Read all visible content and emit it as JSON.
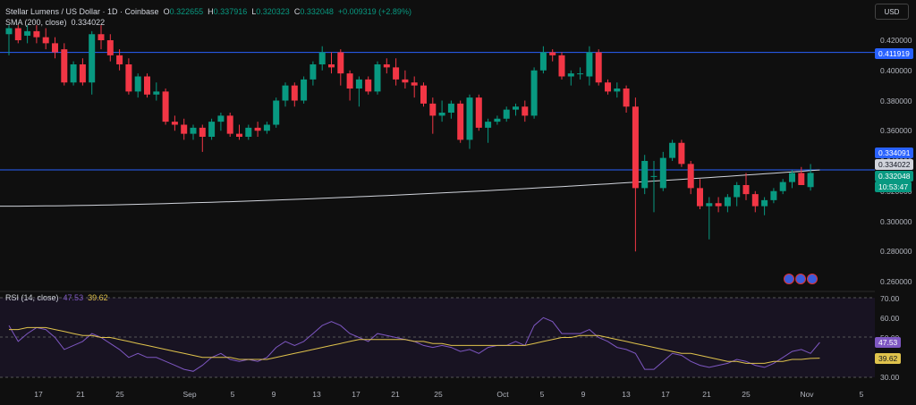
{
  "header": {
    "symbol": "Stellar Lumens / US Dollar · 1D · Coinbase",
    "o_label": "O",
    "o_value": "0.322655",
    "h_label": "H",
    "h_value": "0.337916",
    "l_label": "L",
    "l_value": "0.320323",
    "c_label": "C",
    "c_value": "0.332048",
    "change": "+0.009319 (+2.89%)",
    "sma_label": "SMA (200, close)",
    "sma_value": "0.334022"
  },
  "currency": "USD",
  "price_axis": {
    "ticks": [
      "0.420000",
      "0.400000",
      "0.380000",
      "0.360000",
      "0.340000",
      "0.320000",
      "0.300000",
      "0.280000",
      "0.260000"
    ],
    "tags": {
      "line_top": "0.411919",
      "line_bottom": "0.334091",
      "sma": "0.334022",
      "last_price": "0.332048",
      "countdown": "10:53:47"
    }
  },
  "rsi": {
    "label": "RSI (14, close)",
    "rsi_value": "47.53",
    "ma_value": "39.62",
    "ticks": [
      "70.00",
      "60.00",
      "50.00",
      "30.00"
    ],
    "tag_rsi": "47.53",
    "tag_ma": "39.62"
  },
  "x_axis": [
    "17",
    "21",
    "25",
    "Sep",
    "5",
    "9",
    "13",
    "17",
    "21",
    "25",
    "Oct",
    "5",
    "9",
    "13",
    "17",
    "21",
    "25",
    "Nov",
    "5"
  ],
  "colors": {
    "up": "#089981",
    "down": "#f23645",
    "sma": "#d1d4dc",
    "hline": "#2962ff",
    "rsi": "#7e57c2",
    "rsi_ma": "#e0c34c"
  },
  "chart_data": {
    "type": "candlestick",
    "y_range": [
      0.255,
      0.432
    ],
    "horizontal_lines": [
      0.411919,
      0.334091
    ],
    "candles": [
      {
        "o": 0.424,
        "h": 0.43,
        "l": 0.41,
        "c": 0.428
      },
      {
        "o": 0.428,
        "h": 0.43,
        "l": 0.418,
        "c": 0.42
      },
      {
        "o": 0.423,
        "h": 0.43,
        "l": 0.418,
        "c": 0.426
      },
      {
        "o": 0.426,
        "h": 0.43,
        "l": 0.418,
        "c": 0.422
      },
      {
        "o": 0.422,
        "h": 0.428,
        "l": 0.414,
        "c": 0.418
      },
      {
        "o": 0.418,
        "h": 0.422,
        "l": 0.408,
        "c": 0.412
      },
      {
        "o": 0.414,
        "h": 0.418,
        "l": 0.39,
        "c": 0.392
      },
      {
        "o": 0.392,
        "h": 0.406,
        "l": 0.39,
        "c": 0.404
      },
      {
        "o": 0.404,
        "h": 0.408,
        "l": 0.39,
        "c": 0.392
      },
      {
        "o": 0.392,
        "h": 0.426,
        "l": 0.384,
        "c": 0.424
      },
      {
        "o": 0.424,
        "h": 0.43,
        "l": 0.414,
        "c": 0.42
      },
      {
        "o": 0.42,
        "h": 0.424,
        "l": 0.406,
        "c": 0.41
      },
      {
        "o": 0.41,
        "h": 0.414,
        "l": 0.4,
        "c": 0.404
      },
      {
        "o": 0.404,
        "h": 0.408,
        "l": 0.384,
        "c": 0.386
      },
      {
        "o": 0.386,
        "h": 0.398,
        "l": 0.382,
        "c": 0.396
      },
      {
        "o": 0.396,
        "h": 0.398,
        "l": 0.382,
        "c": 0.384
      },
      {
        "o": 0.384,
        "h": 0.392,
        "l": 0.38,
        "c": 0.386
      },
      {
        "o": 0.386,
        "h": 0.388,
        "l": 0.364,
        "c": 0.366
      },
      {
        "o": 0.366,
        "h": 0.37,
        "l": 0.36,
        "c": 0.364
      },
      {
        "o": 0.364,
        "h": 0.368,
        "l": 0.354,
        "c": 0.358
      },
      {
        "o": 0.358,
        "h": 0.364,
        "l": 0.354,
        "c": 0.362
      },
      {
        "o": 0.362,
        "h": 0.364,
        "l": 0.346,
        "c": 0.356
      },
      {
        "o": 0.356,
        "h": 0.368,
        "l": 0.354,
        "c": 0.366
      },
      {
        "o": 0.366,
        "h": 0.372,
        "l": 0.36,
        "c": 0.37
      },
      {
        "o": 0.37,
        "h": 0.372,
        "l": 0.356,
        "c": 0.358
      },
      {
        "o": 0.358,
        "h": 0.364,
        "l": 0.354,
        "c": 0.356
      },
      {
        "o": 0.356,
        "h": 0.364,
        "l": 0.354,
        "c": 0.362
      },
      {
        "o": 0.362,
        "h": 0.366,
        "l": 0.356,
        "c": 0.36
      },
      {
        "o": 0.36,
        "h": 0.366,
        "l": 0.358,
        "c": 0.364
      },
      {
        "o": 0.364,
        "h": 0.382,
        "l": 0.362,
        "c": 0.38
      },
      {
        "o": 0.38,
        "h": 0.392,
        "l": 0.376,
        "c": 0.39
      },
      {
        "o": 0.39,
        "h": 0.392,
        "l": 0.376,
        "c": 0.38
      },
      {
        "o": 0.38,
        "h": 0.396,
        "l": 0.378,
        "c": 0.394
      },
      {
        "o": 0.394,
        "h": 0.406,
        "l": 0.39,
        "c": 0.404
      },
      {
        "o": 0.404,
        "h": 0.416,
        "l": 0.4,
        "c": 0.412
      },
      {
        "o": 0.404,
        "h": 0.412,
        "l": 0.398,
        "c": 0.402
      },
      {
        "o": 0.412,
        "h": 0.414,
        "l": 0.39,
        "c": 0.398
      },
      {
        "o": 0.398,
        "h": 0.4,
        "l": 0.38,
        "c": 0.388
      },
      {
        "o": 0.388,
        "h": 0.396,
        "l": 0.376,
        "c": 0.394
      },
      {
        "o": 0.394,
        "h": 0.396,
        "l": 0.384,
        "c": 0.386
      },
      {
        "o": 0.386,
        "h": 0.406,
        "l": 0.384,
        "c": 0.404
      },
      {
        "o": 0.404,
        "h": 0.408,
        "l": 0.398,
        "c": 0.402
      },
      {
        "o": 0.402,
        "h": 0.408,
        "l": 0.39,
        "c": 0.394
      },
      {
        "o": 0.394,
        "h": 0.4,
        "l": 0.388,
        "c": 0.392
      },
      {
        "o": 0.392,
        "h": 0.396,
        "l": 0.382,
        "c": 0.39
      },
      {
        "o": 0.39,
        "h": 0.392,
        "l": 0.376,
        "c": 0.378
      },
      {
        "o": 0.378,
        "h": 0.382,
        "l": 0.358,
        "c": 0.37
      },
      {
        "o": 0.37,
        "h": 0.38,
        "l": 0.366,
        "c": 0.372
      },
      {
        "o": 0.372,
        "h": 0.38,
        "l": 0.368,
        "c": 0.378
      },
      {
        "o": 0.378,
        "h": 0.38,
        "l": 0.352,
        "c": 0.354
      },
      {
        "o": 0.354,
        "h": 0.384,
        "l": 0.348,
        "c": 0.382
      },
      {
        "o": 0.382,
        "h": 0.384,
        "l": 0.36,
        "c": 0.362
      },
      {
        "o": 0.362,
        "h": 0.368,
        "l": 0.352,
        "c": 0.366
      },
      {
        "o": 0.366,
        "h": 0.37,
        "l": 0.364,
        "c": 0.368
      },
      {
        "o": 0.368,
        "h": 0.376,
        "l": 0.366,
        "c": 0.374
      },
      {
        "o": 0.374,
        "h": 0.378,
        "l": 0.37,
        "c": 0.376
      },
      {
        "o": 0.376,
        "h": 0.38,
        "l": 0.366,
        "c": 0.37
      },
      {
        "o": 0.37,
        "h": 0.402,
        "l": 0.368,
        "c": 0.4
      },
      {
        "o": 0.4,
        "h": 0.416,
        "l": 0.398,
        "c": 0.412
      },
      {
        "o": 0.412,
        "h": 0.414,
        "l": 0.406,
        "c": 0.41
      },
      {
        "o": 0.41,
        "h": 0.412,
        "l": 0.394,
        "c": 0.396
      },
      {
        "o": 0.396,
        "h": 0.4,
        "l": 0.39,
        "c": 0.398
      },
      {
        "o": 0.398,
        "h": 0.402,
        "l": 0.394,
        "c": 0.398
      },
      {
        "o": 0.396,
        "h": 0.416,
        "l": 0.39,
        "c": 0.412
      },
      {
        "o": 0.412,
        "h": 0.414,
        "l": 0.39,
        "c": 0.392
      },
      {
        "o": 0.392,
        "h": 0.394,
        "l": 0.384,
        "c": 0.386
      },
      {
        "o": 0.386,
        "h": 0.392,
        "l": 0.382,
        "c": 0.388
      },
      {
        "o": 0.388,
        "h": 0.39,
        "l": 0.372,
        "c": 0.376
      },
      {
        "o": 0.376,
        "h": 0.382,
        "l": 0.28,
        "c": 0.322
      },
      {
        "o": 0.322,
        "h": 0.344,
        "l": 0.318,
        "c": 0.34
      },
      {
        "o": 0.33,
        "h": 0.34,
        "l": 0.306,
        "c": 0.33
      },
      {
        "o": 0.322,
        "h": 0.346,
        "l": 0.32,
        "c": 0.342
      },
      {
        "o": 0.342,
        "h": 0.354,
        "l": 0.34,
        "c": 0.352
      },
      {
        "o": 0.352,
        "h": 0.354,
        "l": 0.336,
        "c": 0.338
      },
      {
        "o": 0.338,
        "h": 0.34,
        "l": 0.318,
        "c": 0.322
      },
      {
        "o": 0.322,
        "h": 0.328,
        "l": 0.308,
        "c": 0.31
      },
      {
        "o": 0.31,
        "h": 0.316,
        "l": 0.288,
        "c": 0.312
      },
      {
        "o": 0.312,
        "h": 0.316,
        "l": 0.306,
        "c": 0.31
      },
      {
        "o": 0.31,
        "h": 0.318,
        "l": 0.306,
        "c": 0.316
      },
      {
        "o": 0.316,
        "h": 0.326,
        "l": 0.31,
        "c": 0.324
      },
      {
        "o": 0.324,
        "h": 0.332,
        "l": 0.314,
        "c": 0.318
      },
      {
        "o": 0.318,
        "h": 0.32,
        "l": 0.306,
        "c": 0.31
      },
      {
        "o": 0.31,
        "h": 0.316,
        "l": 0.304,
        "c": 0.314
      },
      {
        "o": 0.314,
        "h": 0.322,
        "l": 0.312,
        "c": 0.32
      },
      {
        "o": 0.32,
        "h": 0.328,
        "l": 0.318,
        "c": 0.326
      },
      {
        "o": 0.326,
        "h": 0.334,
        "l": 0.322,
        "c": 0.332
      },
      {
        "o": 0.332,
        "h": 0.336,
        "l": 0.324,
        "c": 0.324
      },
      {
        "o": 0.322655,
        "h": 0.337916,
        "l": 0.320323,
        "c": 0.332048
      }
    ],
    "sma200": {
      "start": 0.31,
      "end": 0.334022
    },
    "rsi_range": [
      25,
      75
    ],
    "rsi_series": [
      56,
      48,
      52,
      55,
      54,
      50,
      44,
      46,
      48,
      52,
      50,
      47,
      44,
      40,
      42,
      40,
      40,
      38,
      36,
      34,
      33,
      36,
      40,
      42,
      39,
      38,
      39,
      38,
      40,
      45,
      48,
      46,
      48,
      52,
      56,
      58,
      56,
      52,
      50,
      48,
      52,
      51,
      50,
      49,
      48,
      46,
      45,
      46,
      45,
      43,
      44,
      42,
      45,
      46,
      46,
      48,
      46,
      56,
      60,
      58,
      52,
      52,
      52,
      54,
      50,
      48,
      45,
      44,
      42,
      34,
      34,
      38,
      42,
      41,
      38,
      36,
      35,
      36,
      37,
      39,
      38,
      36,
      35,
      37,
      40,
      43,
      44,
      42,
      47.53
    ],
    "rsi_ma_series": [
      54,
      54,
      55,
      55,
      55,
      54,
      53,
      52,
      51,
      51,
      50,
      50,
      49,
      48,
      47,
      46,
      45,
      44,
      43,
      42,
      41,
      40,
      40,
      40,
      40,
      39,
      39,
      39,
      39,
      40,
      41,
      42,
      43,
      44,
      45,
      46,
      47,
      48,
      49,
      49,
      49,
      49,
      49,
      49,
      48,
      48,
      47,
      47,
      46,
      46,
      46,
      46,
      46,
      46,
      46,
      46,
      46,
      47,
      48,
      49,
      50,
      50,
      51,
      51,
      51,
      50,
      49,
      48,
      47,
      46,
      45,
      44,
      43,
      42,
      42,
      41,
      40,
      39,
      38,
      38,
      37,
      37,
      37,
      38,
      38,
      39,
      39,
      39.5,
      39.62
    ]
  }
}
